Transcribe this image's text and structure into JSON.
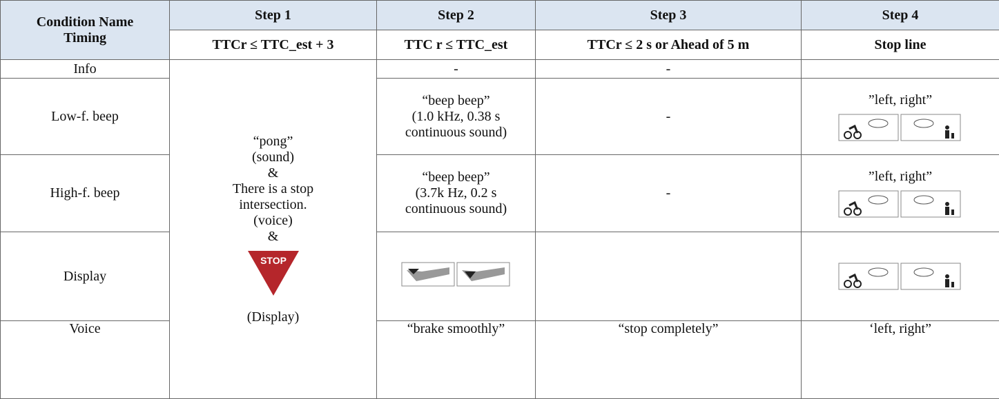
{
  "table": {
    "header": {
      "corner": [
        "Condition Name",
        "Timing"
      ],
      "steps": [
        "Step 1",
        "Step 2",
        "Step 3",
        "Step 4"
      ],
      "timings": [
        "TTCr ≤ TTC_est + 3",
        "TTC r ≤ TTC_est",
        "TTCr ≤ 2 s or Ahead of 5 m",
        "Stop line"
      ]
    },
    "step1": {
      "before_icon": [
        "“pong”",
        "(sound)",
        "&",
        "There is a stop",
        "intersection.",
        "(voice)",
        "&"
      ],
      "stop_sign": "STOP",
      "after_icon": [
        "(Display)"
      ]
    },
    "rows": [
      {
        "condition": "Info",
        "step2": [
          "-"
        ],
        "step3": [
          "-"
        ]
      },
      {
        "condition": "Low-f. beep",
        "step2": [
          "“beep beep”",
          "(1.0 kHz, 0.38 s",
          "continuous sound)"
        ],
        "step3": [
          "-"
        ],
        "step4": [
          "”left, right”"
        ]
      },
      {
        "condition": "High-f. beep",
        "step2": [
          "“beep beep”",
          "(3.7k Hz, 0.2 s",
          "continuous sound)"
        ],
        "step3": [
          "-"
        ],
        "step4": [
          "”left, right”"
        ]
      },
      {
        "condition": "Display"
      },
      {
        "condition": "Voice",
        "step2": [
          "“brake smoothly”"
        ],
        "step3": [
          "“stop completely”"
        ],
        "step4": [
          "‘left, right”"
        ]
      }
    ]
  }
}
